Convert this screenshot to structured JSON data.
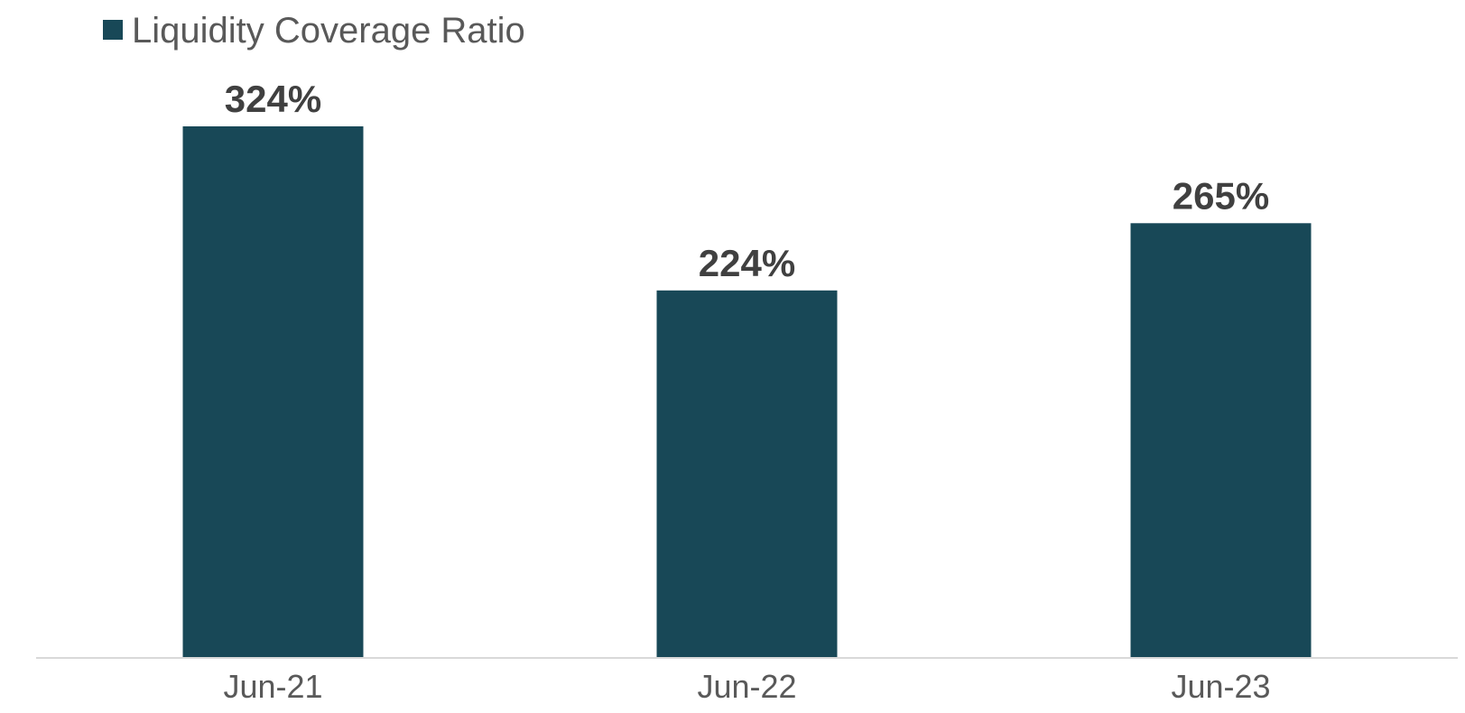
{
  "chart_data": {
    "type": "bar",
    "categories": [
      "Jun-21",
      "Jun-22",
      "Jun-23"
    ],
    "series": [
      {
        "name": "Liquidity Coverage Ratio",
        "values": [
          324,
          224,
          265
        ],
        "data_labels": [
          "324%",
          "224%",
          "265%"
        ]
      }
    ],
    "ylim": [
      0,
      324
    ],
    "grid": false,
    "legend": "top-left",
    "colors": {
      "bar": "#184857",
      "axis": "#d9d9d9"
    }
  }
}
